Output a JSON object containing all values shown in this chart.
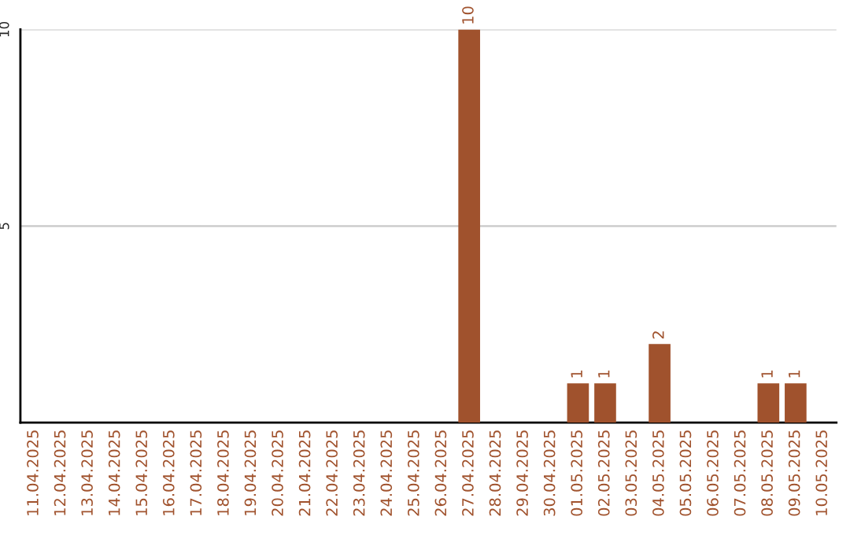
{
  "chart_data": {
    "type": "bar",
    "categories": [
      "11.04.2025",
      "12.04.2025",
      "13.04.2025",
      "14.04.2025",
      "15.04.2025",
      "16.04.2025",
      "17.04.2025",
      "18.04.2025",
      "19.04.2025",
      "20.04.2025",
      "21.04.2025",
      "22.04.2025",
      "23.04.2025",
      "24.04.2025",
      "25.04.2025",
      "26.04.2025",
      "27.04.2025",
      "28.04.2025",
      "29.04.2025",
      "30.04.2025",
      "01.05.2025",
      "02.05.2025",
      "03.05.2025",
      "04.05.2025",
      "05.05.2025",
      "06.05.2025",
      "07.05.2025",
      "08.05.2025",
      "09.05.2025",
      "10.05.2025"
    ],
    "values": [
      0,
      0,
      0,
      0,
      0,
      0,
      0,
      0,
      0,
      0,
      0,
      0,
      0,
      0,
      0,
      0,
      10,
      0,
      0,
      0,
      1,
      1,
      0,
      2,
      0,
      0,
      0,
      1,
      1,
      0
    ],
    "value_labels": [
      null,
      null,
      null,
      null,
      null,
      null,
      null,
      null,
      null,
      null,
      null,
      null,
      null,
      null,
      null,
      null,
      "10",
      null,
      null,
      null,
      "1",
      "1",
      null,
      "2",
      null,
      null,
      null,
      "1",
      "1",
      null
    ],
    "color": "#a0522d",
    "ylim": [
      0,
      10
    ],
    "yticks": [
      {
        "value": 0,
        "label": null
      },
      5,
      10
    ],
    "grid": "y"
  }
}
